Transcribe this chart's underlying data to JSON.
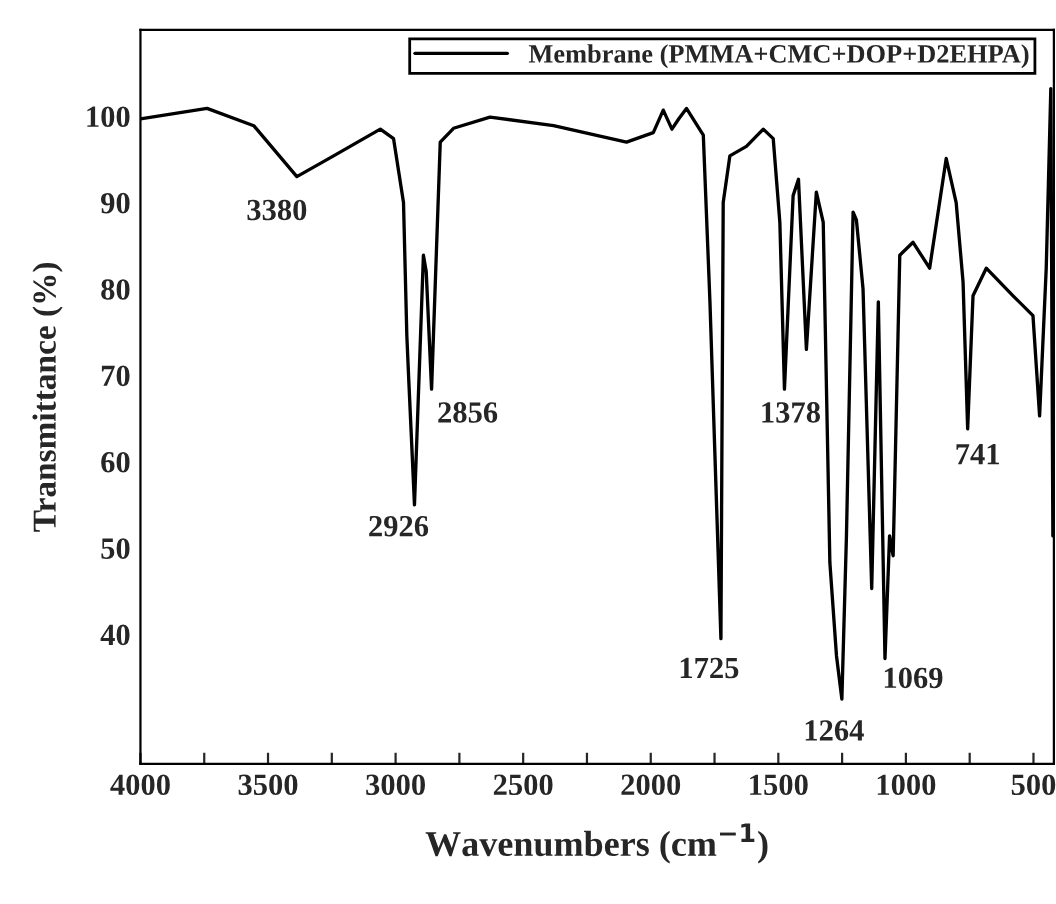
{
  "chart_data": {
    "type": "line",
    "xlabel": "Wavenumbers (cm$^{−1}$)",
    "ylabel": "Transmittance (%)",
    "xlim": [
      4000,
      420
    ],
    "ylim": [
      25,
      110
    ],
    "xticks": [
      4000,
      {
        "value": 3750,
        "label": null
      },
      3500,
      {
        "value": 3250,
        "label": null
      },
      3000,
      {
        "value": 2750,
        "label": null
      },
      2500,
      {
        "value": 2250,
        "label": null
      },
      2000,
      {
        "value": 1750,
        "label": null
      },
      1500,
      {
        "value": 1250,
        "label": null
      },
      1000,
      {
        "value": 750,
        "label": null
      },
      500
    ],
    "yticks": [
      40,
      50,
      60,
      70,
      80,
      90,
      100
    ],
    "grid": false,
    "legend": "top right",
    "marker": "none",
    "line_style": "solid",
    "series": [
      {
        "name": "Membrane (PMMA+CMC+DOP+D2EHPA)",
        "color": "#000000",
        "x": [
          4000,
          3739,
          3556,
          3387,
          3243,
          3060,
          3008,
          2969,
          2956,
          2948,
          2926,
          2891,
          2880,
          2859,
          2825,
          2773,
          2630,
          2381,
          2095,
          1990,
          1951,
          1917,
          1890,
          1860,
          1794,
          1768,
          1725,
          1716,
          1690,
          1625,
          1559,
          1520,
          1494,
          1476,
          1442,
          1421,
          1390,
          1351,
          1324,
          1298,
          1272,
          1251,
          1233,
          1207,
          1194,
          1168,
          1134,
          1108,
          1082,
          1064,
          1050,
          1024,
          972,
          907,
          842,
          803,
          776,
          758,
          737,
          685,
          580,
          502,
          476,
          450,
          432,
          424
        ],
        "values": [
          99.7,
          100.9,
          98.9,
          93,
          95.4,
          98.5,
          97.4,
          90,
          74.6,
          69.2,
          55,
          83.9,
          82,
          68.4,
          97,
          98.6,
          99.9,
          98.9,
          97,
          98.1,
          100.7,
          98.5,
          99.7,
          100.9,
          97.8,
          78.5,
          39.5,
          90,
          95.4,
          96.5,
          98.5,
          97.4,
          87.7,
          68.4,
          90.8,
          92.7,
          73,
          91.2,
          87.7,
          48.3,
          37.5,
          32.5,
          51.4,
          88.9,
          88,
          80,
          45.3,
          78.5,
          37.2,
          51.4,
          49.1,
          83.9,
          85.4,
          82.4,
          95.1,
          90,
          80.8,
          63.8,
          79.2,
          82.4,
          79.2,
          76.9,
          65.3,
          82.4,
          103.2,
          51.4
        ]
      }
    ],
    "annotations": [
      {
        "text": "3380",
        "x": 3387,
        "y": 93
      },
      {
        "text": "2926",
        "x": 2926,
        "y": 55
      },
      {
        "text": "2856",
        "x": 2859,
        "y": 68.4
      },
      {
        "text": "1725",
        "x": 1725,
        "y": 39.5
      },
      {
        "text": "1378",
        "x": 1476,
        "y": 68.4
      },
      {
        "text": "1264",
        "x": 1251,
        "y": 32.5
      },
      {
        "text": "1069",
        "x": 1082,
        "y": 37.2
      },
      {
        "text": "741",
        "x": 758,
        "y": 63.8
      }
    ]
  }
}
